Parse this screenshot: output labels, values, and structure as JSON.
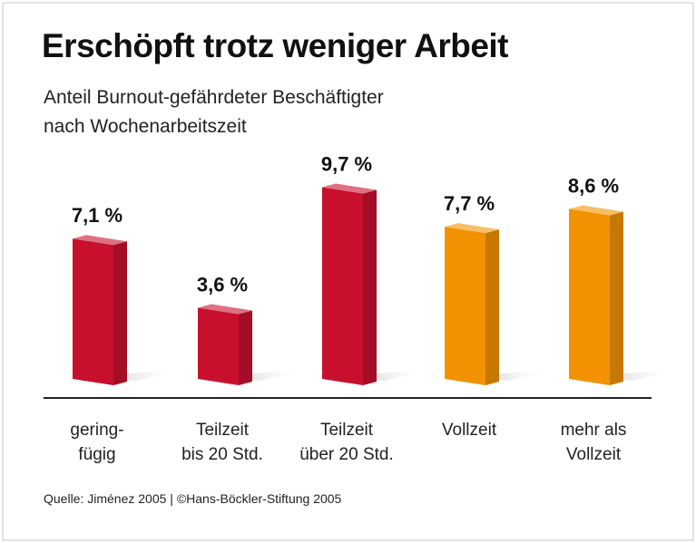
{
  "chart_data": {
    "type": "bar",
    "title": "Erschöpft trotz weniger Arbeit",
    "subtitle": [
      "Anteil Burnout-gefährdeter Beschäftigter",
      "nach Wochenarbeitszeit"
    ],
    "categories": [
      [
        "gering-",
        "fügig"
      ],
      [
        "Teilzeit",
        "bis 20 Std."
      ],
      [
        "Teilzeit",
        "über 20 Std."
      ],
      [
        "Vollzeit"
      ],
      [
        "mehr als",
        "Vollzeit"
      ]
    ],
    "values": [
      7.1,
      3.6,
      9.7,
      7.7,
      8.6
    ],
    "value_labels": [
      "7,1 %",
      "3,6 %",
      "9,7 %",
      "7,7 %",
      "8,6 %"
    ],
    "unit": "%",
    "colors": [
      "#c8102e",
      "#c8102e",
      "#c8102e",
      "#f39200",
      "#f39200"
    ],
    "ylim": [
      0,
      10
    ],
    "grid": false,
    "style": "3d-bar"
  },
  "source": "Quelle: Jiménez 2005 | ©Hans-Böckler-Stiftung 2005"
}
